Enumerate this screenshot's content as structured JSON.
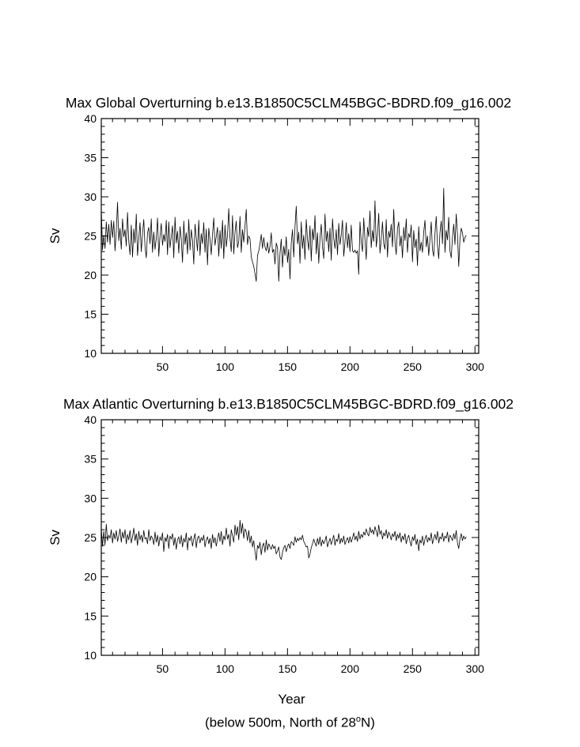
{
  "chart_data": [
    {
      "type": "line",
      "title": "Max Global Overturning b.e13.B1850C5CLM45BGC-BDRD.f09_g16.002",
      "xlabel": "",
      "ylabel": "Sv",
      "xlim": [
        1,
        303
      ],
      "ylim": [
        10,
        40
      ],
      "xticks": [
        50,
        100,
        150,
        200,
        250,
        300
      ],
      "yticks": [
        10,
        15,
        20,
        25,
        30,
        35,
        40
      ],
      "grid": false,
      "series": [
        {
          "x_start": 1,
          "x_step": 1,
          "values": [
            28.6,
            23.2,
            25.1,
            23.4,
            26.8,
            24.2,
            26.5,
            23.9,
            27.0,
            24.8,
            26.9,
            23.1,
            25.6,
            29.3,
            24.4,
            26.0,
            23.3,
            27.2,
            24.9,
            25.8,
            23.7,
            28.0,
            24.3,
            22.6,
            26.4,
            22.3,
            25.9,
            24.1,
            27.8,
            22.5,
            24.6,
            26.7,
            23.0,
            25.3,
            27.1,
            23.6,
            22.2,
            25.4,
            26.1,
            24.0,
            27.2,
            22.9,
            25.5,
            23.3,
            24.7,
            27.3,
            22.4,
            25.0,
            26.6,
            23.8,
            25.2,
            24.3,
            27.0,
            22.6,
            26.8,
            23.5,
            24.9,
            26.3,
            22.2,
            27.4,
            24.1,
            25.6,
            22.8,
            26.2,
            24.6,
            21.6,
            26.9,
            23.9,
            25.4,
            22.7,
            27.1,
            23.2,
            25.8,
            24.4,
            21.4,
            26.5,
            24.8,
            23.1,
            27.0,
            22.5,
            25.3,
            24.0,
            26.7,
            22.9,
            25.9,
            21.3,
            26.0,
            24.5,
            22.6,
            25.2,
            27.3,
            23.8,
            24.9,
            26.1,
            22.4,
            25.7,
            23.4,
            27.0,
            22.1,
            26.4,
            23.6,
            25.1,
            28.5,
            24.7,
            23.0,
            27.6,
            22.7,
            25.5,
            26.9,
            23.5,
            24.3,
            27.5,
            22.9,
            25.8,
            24.2,
            26.3,
            28.4,
            23.9,
            25.0,
            24.6,
            22.3,
            21.7,
            21.1,
            20.2,
            19.2,
            22.5,
            23.1,
            24.0,
            25.2,
            23.4,
            24.8,
            23.6,
            23.1,
            24.2,
            22.8,
            23.7,
            25.4,
            22.9,
            23.3,
            21.4,
            24.1,
            23.5,
            19.2,
            22.8,
            24.6,
            21.0,
            23.7,
            22.5,
            24.9,
            21.6,
            23.3,
            19.5,
            24.1,
            25.8,
            22.3,
            26.2,
            28.8,
            24.0,
            25.5,
            21.5,
            26.8,
            23.4,
            25.1,
            22.0,
            27.1,
            24.6,
            23.2,
            26.3,
            21.8,
            25.9,
            24.5,
            27.6,
            22.7,
            25.4,
            21.5,
            24.7,
            26.5,
            23.6,
            22.1,
            27.8,
            24.3,
            25.6,
            23.0,
            26.0,
            21.9,
            27.2,
            24.7,
            23.4,
            25.8,
            22.6,
            26.6,
            23.9,
            25.1,
            27.0,
            22.4,
            24.2,
            26.7,
            23.5,
            25.3,
            23.0,
            26.4,
            23.1,
            22.9,
            23.2,
            22.8,
            23.1,
            20.1,
            26.8,
            24.2,
            23.0,
            27.3,
            24.5,
            22.0,
            26.1,
            24.9,
            28.2,
            23.5,
            25.7,
            24.3,
            29.5,
            23.6,
            25.1,
            27.9,
            22.8,
            24.6,
            26.8,
            24.0,
            23.3,
            27.1,
            22.3,
            25.6,
            24.8,
            26.5,
            23.6,
            28.4,
            24.2,
            22.6,
            25.9,
            26.8,
            23.7,
            25.0,
            22.2,
            26.1,
            24.4,
            27.2,
            22.9,
            25.3,
            24.8,
            26.4,
            21.7,
            25.7,
            23.5,
            24.6,
            21.2,
            26.2,
            23.1,
            24.2,
            22.9,
            25.5,
            27.0,
            23.6,
            25.0,
            22.5,
            24.6,
            26.8,
            23.2,
            22.4,
            25.3,
            27.5,
            23.8,
            22.1,
            25.4,
            26.9,
            24.0,
            31.1,
            22.9,
            25.7,
            24.5,
            27.4,
            23.1,
            22.2,
            24.8,
            26.5,
            23.9,
            27.8,
            25.2,
            21.1,
            24.6,
            26.0,
            25.4,
            24.2,
            24.8,
            25.1
          ]
        }
      ]
    },
    {
      "type": "line",
      "title": "Max Atlantic Overturning b.e13.B1850C5CLM45BGC-BDRD.f09_g16.002",
      "xlabel": "Year",
      "ylabel": "Sv",
      "xlim": [
        1,
        303
      ],
      "ylim": [
        10,
        40
      ],
      "xticks": [
        50,
        100,
        150,
        200,
        250,
        300
      ],
      "yticks": [
        10,
        15,
        20,
        25,
        30,
        35,
        40
      ],
      "grid": false,
      "series": [
        {
          "x_start": 1,
          "x_step": 1,
          "values": [
            26.2,
            23.9,
            25.8,
            24.1,
            26.7,
            24.6,
            25.3,
            24.9,
            26.0,
            24.3,
            25.6,
            24.8,
            25.9,
            24.5,
            25.2,
            26.1,
            24.4,
            25.7,
            24.9,
            26.0,
            24.2,
            25.4,
            24.7,
            25.9,
            24.3,
            25.1,
            26.2,
            24.6,
            25.5,
            24.0,
            25.8,
            24.7,
            25.3,
            24.4,
            25.9,
            24.8,
            25.0,
            24.2,
            26.0,
            24.6,
            25.2,
            24.9,
            24.1,
            25.7,
            24.4,
            25.3,
            23.9,
            25.1,
            24.6,
            25.6,
            23.2,
            25.0,
            24.5,
            25.4,
            23.6,
            25.2,
            24.8,
            25.5,
            24.0,
            25.0,
            23.5,
            24.7,
            25.1,
            24.2,
            25.3,
            23.8,
            24.9,
            24.4,
            25.6,
            23.4,
            25.0,
            24.6,
            25.2,
            23.9,
            24.8,
            25.5,
            23.7,
            24.9,
            25.2,
            24.3,
            25.0,
            24.6,
            25.3,
            23.8,
            24.7,
            25.1,
            24.2,
            24.9,
            23.6,
            25.4,
            24.3,
            25.0,
            23.9,
            24.8,
            25.6,
            24.5,
            25.8,
            24.1,
            25.2,
            24.7,
            26.2,
            24.8,
            25.4,
            23.9,
            26.0,
            25.2,
            24.4,
            26.6,
            25.3,
            26.4,
            24.7,
            27.2,
            25.5,
            26.8,
            24.9,
            26.1,
            25.7,
            24.6,
            25.9,
            24.3,
            25.2,
            23.8,
            24.6,
            23.2,
            22.1,
            24.0,
            23.6,
            24.4,
            22.8,
            23.9,
            24.3,
            23.1,
            24.7,
            23.4,
            24.2,
            23.8,
            23.5,
            24.1,
            23.6,
            23.9,
            22.9,
            23.3,
            23.8,
            22.5,
            22.2,
            23.1,
            23.7,
            24.0,
            23.2,
            23.9,
            24.2,
            23.6,
            24.5,
            24.3,
            24.0,
            25.1,
            24.4,
            24.9,
            24.6,
            25.0,
            24.7,
            25.3,
            24.5,
            24.2,
            23.8,
            23.9,
            22.4,
            22.9,
            23.7,
            24.2,
            24.8,
            24.3,
            23.9,
            24.9,
            24.1,
            25.1,
            23.9,
            24.7,
            24.2,
            24.6,
            25.2,
            23.8,
            24.4,
            24.9,
            24.1,
            24.7,
            25.3,
            24.0,
            24.8,
            24.5,
            25.5,
            24.2,
            24.9,
            24.4,
            25.2,
            24.1,
            24.6,
            25.0,
            24.3,
            25.1,
            24.4,
            24.9,
            25.6,
            24.7,
            25.2,
            24.5,
            25.8,
            24.8,
            25.4,
            25.0,
            25.7,
            25.3,
            26.1,
            25.5,
            25.2,
            26.3,
            25.6,
            26.0,
            25.4,
            26.4,
            25.8,
            25.1,
            26.6,
            25.4,
            25.9,
            24.8,
            25.6,
            25.2,
            26.0,
            24.9,
            25.7,
            25.3,
            24.7,
            25.5,
            25.1,
            25.8,
            24.6,
            25.4,
            24.9,
            25.6,
            24.4,
            25.2,
            24.7,
            25.5,
            24.2,
            24.9,
            25.3,
            24.5,
            23.9,
            25.1,
            24.6,
            25.4,
            24.1,
            24.8,
            23.3,
            24.7,
            24.3,
            25.2,
            24.0,
            24.8,
            25.3,
            24.4,
            25.0,
            24.6,
            25.6,
            24.2,
            24.9,
            25.4,
            24.7,
            25.8,
            24.3,
            25.1,
            24.8,
            25.6,
            24.5,
            25.2,
            24.9,
            25.7,
            24.4,
            25.3,
            25.0,
            24.6,
            25.5,
            24.8,
            25.9,
            24.3,
            23.6,
            24.8,
            25.5,
            24.6,
            25.2,
            24.8,
            25.1
          ]
        }
      ]
    }
  ],
  "footnote": {
    "prefix": "(below 500m, North of 28",
    "degree": "o",
    "suffix": "N)"
  }
}
